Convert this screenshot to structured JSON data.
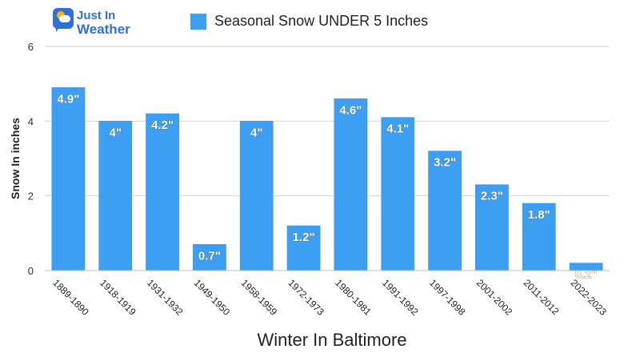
{
  "logo": {
    "line1": "Just In",
    "line2": "Weather"
  },
  "colors": {
    "bar": "#3d9ff2",
    "bar_edge": "#2f8de6",
    "grid": "#d6d6d6",
    "text": "#333333"
  },
  "chart_data": {
    "type": "bar",
    "categories": [
      "1889-1890",
      "1918-1919",
      "1931-1932",
      "1949-1950",
      "1958-1959",
      "1972-1973",
      "1980-1981",
      "1991-1992",
      "1997-1998",
      "2001-2002",
      "2011-2012",
      "2022-2023"
    ],
    "series": [
      {
        "name": "Seasonal Snow UNDER 5 Inches",
        "values": [
          4.9,
          4.0,
          4.2,
          0.7,
          4.0,
          1.2,
          4.6,
          4.1,
          3.2,
          2.3,
          1.8,
          0.2
        ],
        "labels": [
          "4.9\"",
          "4\"",
          "4.2\"",
          "0.7\"",
          "4\"",
          "1.2\"",
          "4.6\"",
          "4.1\"",
          "3.2\"",
          "2.3\"",
          "1.8\"",
          "0.2\""
        ]
      }
    ],
    "xlabel": "Winter In Baltimore",
    "ylabel": "Snow In inches",
    "ylim": [
      0,
      6
    ],
    "yticks": [
      "0",
      "2",
      "4",
      "6"
    ],
    "grid": true,
    "legend": "top"
  }
}
